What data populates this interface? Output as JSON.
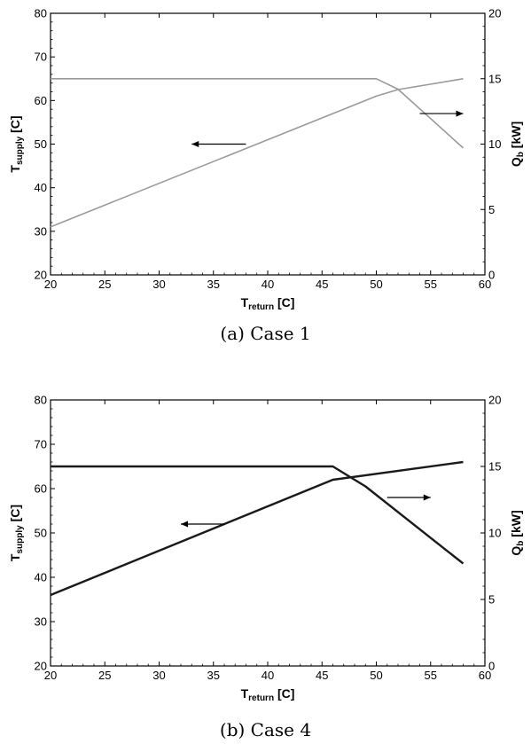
{
  "chart_data": [
    {
      "type": "line",
      "caption": "(a) Case 1",
      "xlabel": {
        "main": "T",
        "sub": "return",
        "unit": "[C]"
      },
      "ylabel_left": {
        "main": "T",
        "sub": "supply",
        "unit": "[C]"
      },
      "ylabel_right": {
        "main": "Q",
        "sub": "b",
        "unit": "[kW]"
      },
      "xlim": [
        20,
        60
      ],
      "ylim_left": [
        20,
        80
      ],
      "ylim_right": [
        0,
        20
      ],
      "x_ticks": [
        20,
        25,
        30,
        35,
        40,
        45,
        50,
        55,
        60
      ],
      "y_left_ticks": [
        20,
        30,
        40,
        50,
        60,
        70,
        80
      ],
      "y_right_ticks": [
        0,
        5,
        10,
        15,
        20
      ],
      "line_color": "#9a9a9a",
      "series": [
        {
          "axis": "left",
          "x": [
            20,
            50,
            52,
            58
          ],
          "y": [
            31,
            61,
            62.5,
            65
          ]
        },
        {
          "axis": "right",
          "x": [
            20,
            50,
            52,
            58
          ],
          "y": [
            15,
            15,
            14.2,
            9.7
          ]
        }
      ],
      "annotations": [
        {
          "type": "arrow",
          "direction": "left",
          "x_from": 38,
          "x_to": 33,
          "y_left": 50
        },
        {
          "type": "arrow",
          "direction": "right",
          "x_from": 54,
          "x_to": 58,
          "y_left": 57
        }
      ]
    },
    {
      "type": "line",
      "caption": "(b) Case 4",
      "xlabel": {
        "main": "T",
        "sub": "return",
        "unit": "[C]"
      },
      "ylabel_left": {
        "main": "T",
        "sub": "supply",
        "unit": "[C]"
      },
      "ylabel_right": {
        "main": "Q",
        "sub": "b",
        "unit": "[kW]"
      },
      "xlim": [
        20,
        60
      ],
      "ylim_left": [
        20,
        80
      ],
      "ylim_right": [
        0,
        20
      ],
      "x_ticks": [
        20,
        25,
        30,
        35,
        40,
        45,
        50,
        55,
        60
      ],
      "y_left_ticks": [
        20,
        30,
        40,
        50,
        60,
        70,
        80
      ],
      "y_right_ticks": [
        0,
        5,
        10,
        15,
        20
      ],
      "line_color": "#1a1a1a",
      "series": [
        {
          "axis": "left",
          "x": [
            20,
            46,
            58
          ],
          "y": [
            36,
            62,
            66
          ]
        },
        {
          "axis": "right",
          "x": [
            20,
            46,
            49,
            58
          ],
          "y": [
            15,
            15,
            13.5,
            7.7
          ]
        }
      ],
      "annotations": [
        {
          "type": "arrow",
          "direction": "left",
          "x_from": 36,
          "x_to": 32,
          "y_left": 52
        },
        {
          "type": "arrow",
          "direction": "right",
          "x_from": 51,
          "x_to": 55,
          "y_left": 58
        }
      ]
    }
  ]
}
